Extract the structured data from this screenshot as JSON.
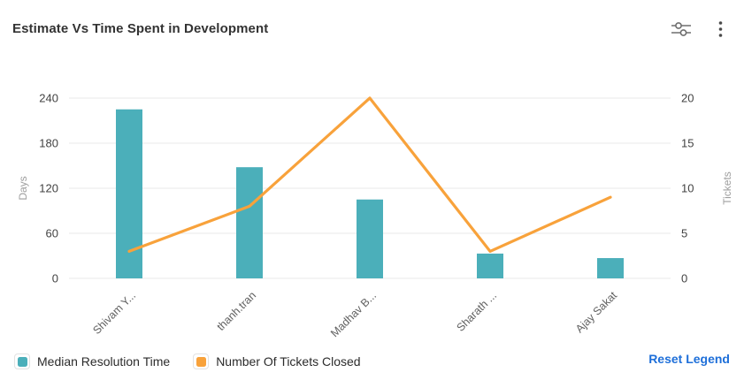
{
  "header": {
    "title": "Estimate Vs Time Spent in Development",
    "icons": [
      "filter-sliders-icon",
      "kebab-menu-icon"
    ]
  },
  "chart_data": {
    "type": "bar",
    "subtype": "combo-bar-line",
    "title": "Estimate Vs Time Spent in Development",
    "categories": [
      "Shivam Y...",
      "thanh.tran",
      "Madhav B...",
      "Sharath ...",
      "Ajay Sakat"
    ],
    "series": [
      {
        "name": "Median Resolution Time",
        "type": "bar",
        "axis": "left",
        "color": "#4BAFBA",
        "values": [
          225,
          148,
          105,
          33,
          27
        ]
      },
      {
        "name": "Number Of Tickets Closed",
        "type": "line",
        "axis": "right",
        "color": "#F8A23B",
        "values": [
          3,
          8,
          20,
          3,
          9
        ]
      }
    ],
    "left_axis": {
      "label": "Days",
      "min": 0,
      "max": 240,
      "ticks": [
        0,
        60,
        120,
        180,
        240
      ]
    },
    "right_axis": {
      "label": "Tickets",
      "min": 0,
      "max": 20,
      "ticks": [
        0,
        5,
        10,
        15,
        20
      ]
    },
    "grid": true,
    "legend_position": "bottom",
    "colors": {
      "grid_line": "#ededed",
      "tick_label": "#424242",
      "axis_name": "#9e9e9e",
      "category_label": "#616161"
    }
  },
  "legend": {
    "items": [
      {
        "label": "Median Resolution Time",
        "color": "#4BAFBA"
      },
      {
        "label": "Number Of Tickets Closed",
        "color": "#F8A23B"
      }
    ],
    "reset_label": "Reset Legend",
    "reset_color": "#1E6FD9"
  }
}
